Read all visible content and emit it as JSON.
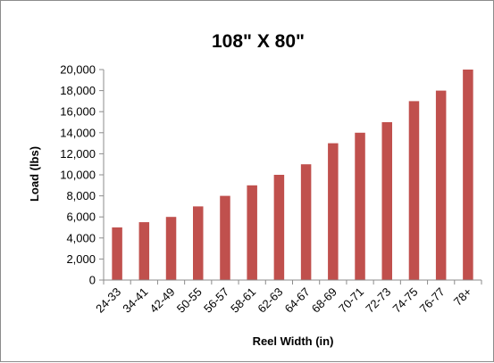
{
  "chart_data": {
    "type": "bar",
    "title": "108\" X 80\"",
    "xlabel": "Reel Width (in)",
    "ylabel": "Load (lbs)",
    "categories": [
      "24-33",
      "34-41",
      "42-49",
      "50-55",
      "56-57",
      "58-61",
      "62-63",
      "64-67",
      "68-69",
      "70-71",
      "72-73",
      "74-75",
      "76-77",
      "78+"
    ],
    "values": [
      5000,
      5500,
      6000,
      7000,
      8000,
      9000,
      10000,
      11000,
      13000,
      14000,
      15000,
      17000,
      18000,
      20000
    ],
    "ylim": [
      0,
      20000
    ],
    "yticks": [
      0,
      2000,
      4000,
      6000,
      8000,
      10000,
      12000,
      14000,
      16000,
      18000,
      20000
    ],
    "ytick_labels": [
      "0",
      "2,000",
      "4,000",
      "6,000",
      "8,000",
      "10,000",
      "12,000",
      "14,000",
      "16,000",
      "18,000",
      "20,000"
    ],
    "grid": false,
    "legend": "none",
    "bar_color": "#c0504d"
  }
}
